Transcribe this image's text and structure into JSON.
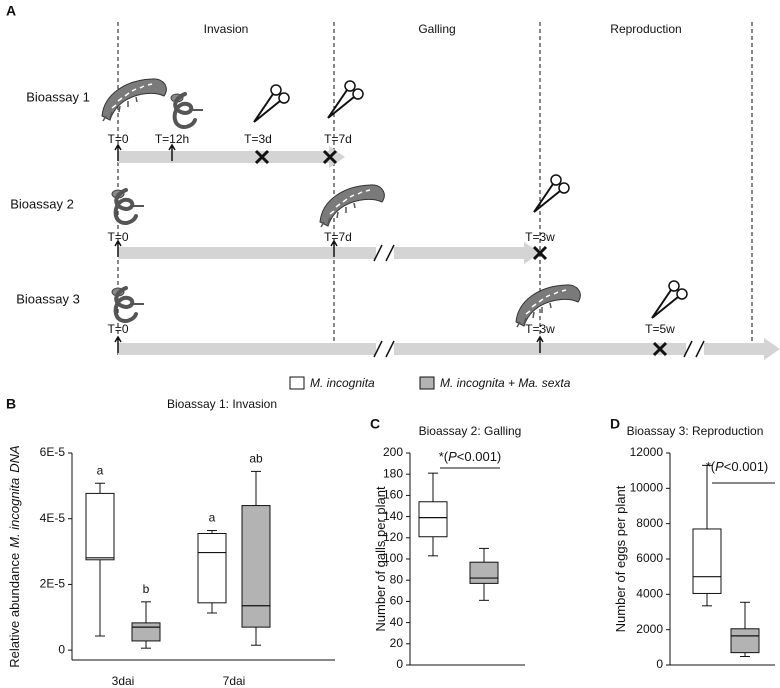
{
  "figure_a": {
    "label": "A",
    "phases": [
      "Invasion",
      "Galling",
      "Reproduction"
    ],
    "bioassays": [
      {
        "name": "Bioassay 1",
        "times": [
          "T=0",
          "T=12h",
          "T=3d",
          "T=7d"
        ]
      },
      {
        "name": "Bioassay 2",
        "times": [
          "T=0",
          "T=7d",
          "T=3w"
        ]
      },
      {
        "name": "Bioassay 3",
        "times": [
          "T=0",
          "T=3w",
          "T=5w"
        ]
      }
    ]
  },
  "legend": [
    {
      "label": "M. incognita",
      "color": "#ffffff"
    },
    {
      "label": "M. incognita + Ma. sexta",
      "color": "#b3b3b3"
    }
  ],
  "chart_data": [
    {
      "type": "box",
      "panel": "B",
      "title": "Bioassay 1: Invasion",
      "ylabel": [
        "Relative abundance",
        "M. incognita",
        "DNA"
      ],
      "categories": [
        "3dai",
        "7dai"
      ],
      "ylim": [
        -3e-06,
        6e-05
      ],
      "yticks": [
        0,
        {
          "value": 2e-05,
          "label": "2E-5"
        },
        {
          "value": 4e-05,
          "label": "4E-5"
        },
        {
          "value": 6e-05,
          "label": "6E-5"
        }
      ],
      "series": [
        {
          "color": "#ffffff",
          "letters": [
            "a",
            "a"
          ],
          "values": [
            {
              "low": 4.3e-06,
              "q1": 2.75e-05,
              "median": 2.81e-05,
              "q3": 4.77e-05,
              "high": 5.08e-05
            },
            {
              "low": 1.13e-05,
              "q1": 1.44e-05,
              "median": 2.97e-05,
              "q3": 3.55e-05,
              "high": 3.64e-05
            }
          ]
        },
        {
          "color": "#b3b3b3",
          "letters": [
            "b",
            "ab"
          ],
          "values": [
            {
              "low": 6e-07,
              "q1": 2.8e-06,
              "median": 7e-06,
              "q3": 8.3e-06,
              "high": 1.47e-05
            },
            {
              "low": 1.5e-06,
              "q1": 7e-06,
              "median": 1.35e-05,
              "q3": 4.4e-05,
              "high": 5.44e-05
            }
          ]
        }
      ]
    },
    {
      "type": "box",
      "panel": "C",
      "title": "Bioassay 2: Galling",
      "ylabel": [
        "Number of galls per plant"
      ],
      "annotation": [
        "*(",
        "P",
        "<0.001)"
      ],
      "ylim": [
        0,
        200
      ],
      "yticks": [
        0,
        20,
        40,
        60,
        80,
        100,
        120,
        140,
        160,
        180,
        200
      ],
      "series": [
        {
          "color": "#ffffff",
          "values": [
            {
              "low": 103,
              "q1": 121,
              "median": 139,
              "q3": 154,
              "high": 181
            }
          ]
        },
        {
          "color": "#b3b3b3",
          "values": [
            {
              "low": 61,
              "q1": 77,
              "median": 82,
              "q3": 97,
              "high": 110
            }
          ]
        }
      ]
    },
    {
      "type": "box",
      "panel": "D",
      "title": "Bioassay 3: Reproduction",
      "ylabel": [
        "Number of eggs per plant"
      ],
      "annotation": [
        "*(",
        "P",
        "<0.001)"
      ],
      "ylim": [
        0,
        12000
      ],
      "yticks": [
        0,
        2000,
        4000,
        6000,
        8000,
        10000,
        12000
      ],
      "series": [
        {
          "color": "#ffffff",
          "values": [
            {
              "low": 3350,
              "q1": 4050,
              "median": 5000,
              "q3": 7700,
              "high": 11300
            }
          ]
        },
        {
          "color": "#b3b3b3",
          "values": [
            {
              "low": 480,
              "q1": 700,
              "median": 1650,
              "q3": 2050,
              "high": 3550
            }
          ]
        }
      ]
    }
  ]
}
